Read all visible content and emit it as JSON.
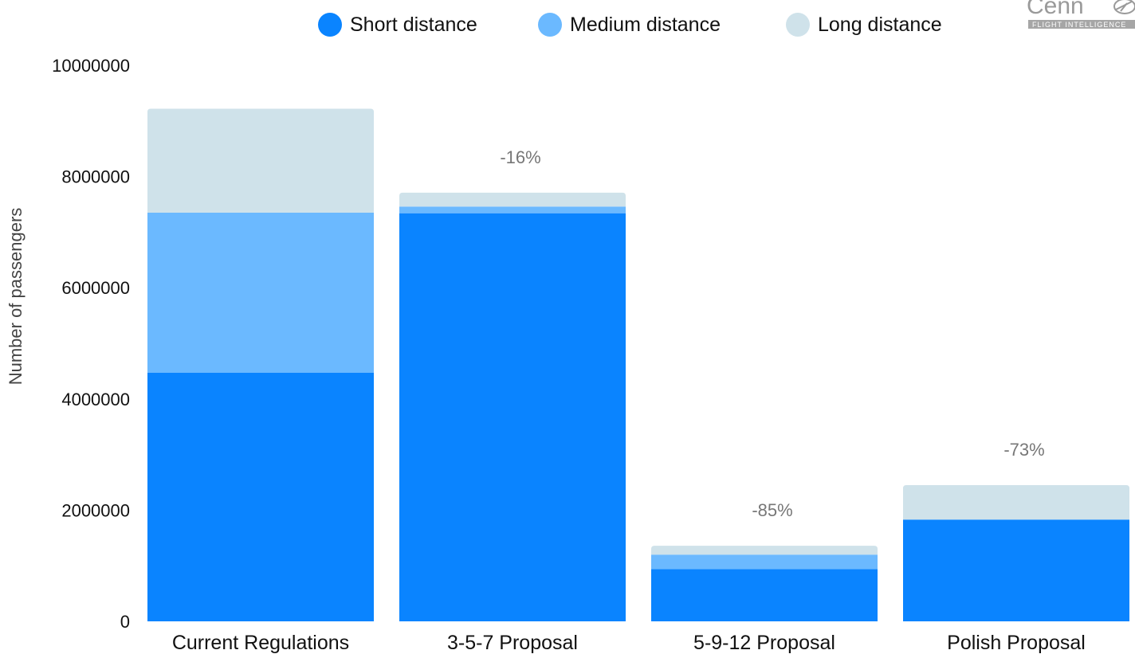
{
  "chart_data": {
    "type": "bar",
    "stacked": true,
    "categories": [
      "Current Regulations",
      "3-5-7 Proposal",
      "5-9-12 Proposal",
      "Polish Proposal"
    ],
    "series": [
      {
        "name": "Short distance",
        "color": "#0a84ff",
        "values": [
          4470000,
          7340000,
          940000,
          1830000
        ]
      },
      {
        "name": "Medium distance",
        "color": "#6bb9ff",
        "values": [
          2880000,
          120000,
          260000,
          0
        ]
      },
      {
        "name": "Long distance",
        "color": "#cfe2ea",
        "values": [
          1870000,
          250000,
          160000,
          620000
        ]
      }
    ],
    "annotations": [
      "",
      "-16%",
      "-85%",
      "-73%"
    ],
    "ylabel": "Number of passengers",
    "xlabel": "",
    "ylim": [
      0,
      10000000
    ],
    "yticks": [
      "0",
      "2000000",
      "4000000",
      "6000000",
      "8000000",
      "10000000"
    ],
    "legend_position": "top",
    "grid": false
  },
  "logo": {
    "word": "Cenn",
    "tagline": "FLIGHT INTELLIGENCE",
    "icon": "airplane-icon"
  }
}
